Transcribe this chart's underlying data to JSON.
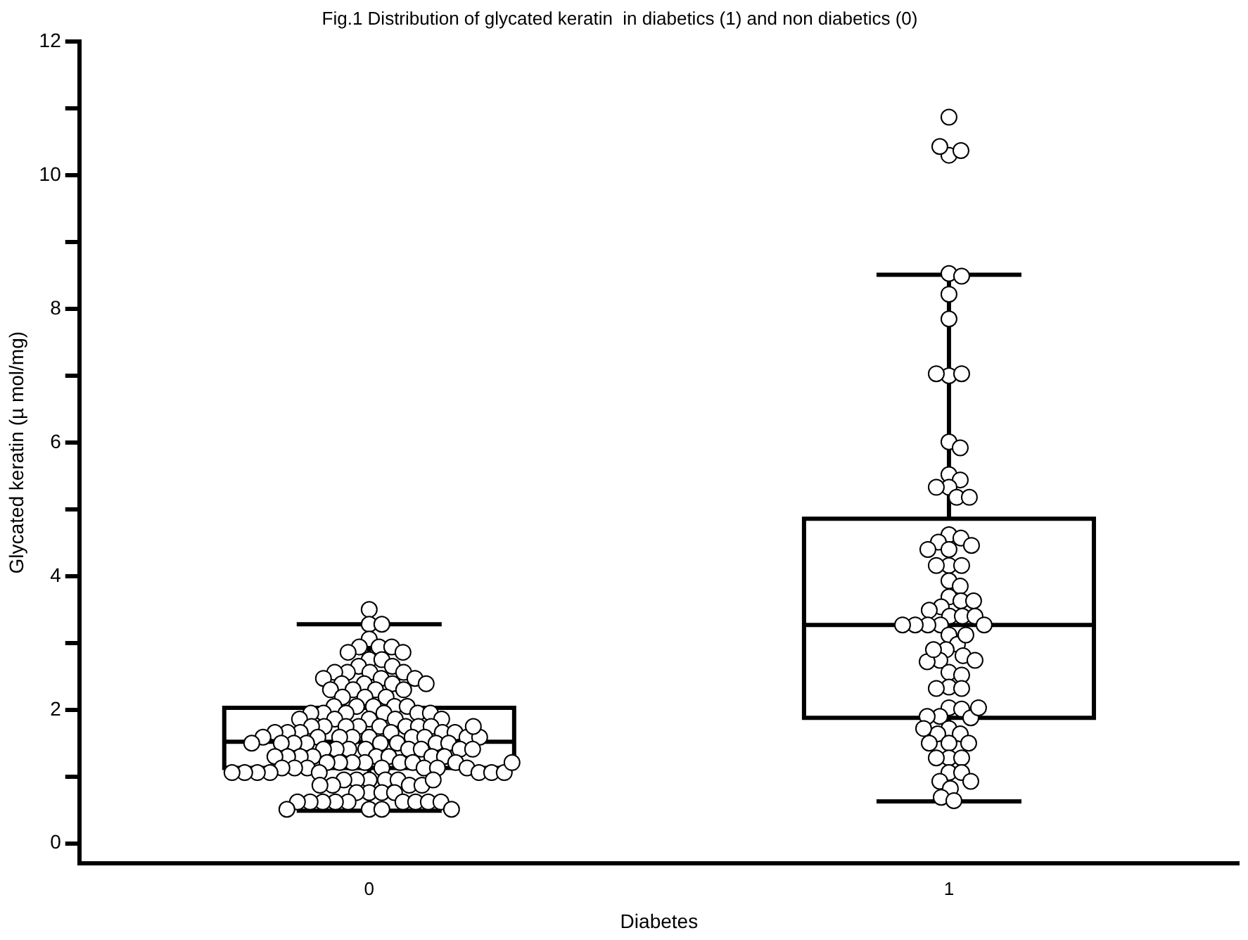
{
  "chart_data": {
    "type": "box",
    "title": "Fig.1 Distribution of glycated keratin  in diabetics (1) and non diabetics (0)",
    "xlabel": "Diabetes",
    "ylabel": "Glycated keratin (µ mol/mg)",
    "categories": [
      "0",
      "1"
    ],
    "color": "#000000",
    "boxes": [
      {
        "low": 0.49,
        "q1": 1.13,
        "median": 1.52,
        "q3": 2.03,
        "high": 3.28
      },
      {
        "low": 0.63,
        "q1": 1.88,
        "median": 3.27,
        "q3": 4.86,
        "high": 8.51
      }
    ],
    "ylim": [
      -0.3,
      12
    ],
    "yticks": [
      0,
      {
        "value": 1,
        "label": null
      },
      2,
      {
        "value": 3,
        "label": null
      },
      4,
      {
        "value": 5,
        "label": null
      },
      6,
      {
        "value": 7,
        "label": null
      },
      8,
      {
        "value": 9,
        "label": null
      },
      10,
      {
        "value": 11,
        "label": null
      },
      12
    ],
    "grid": false,
    "legend": false,
    "marker": "circle",
    "series": [
      {
        "type": "scatter",
        "color": "#000000",
        "x": [
          "0",
          "0",
          "0",
          "0",
          "0",
          "0",
          "0",
          "0",
          "0",
          "0",
          "0",
          "0",
          "0",
          "0",
          "0",
          "0",
          "0",
          "0",
          "0",
          "0",
          "0",
          "0",
          "0",
          "0",
          "0",
          "0",
          "0",
          "0",
          "0",
          "0",
          "0",
          "0",
          "0",
          "0",
          "0",
          "0",
          "0",
          "0",
          "0",
          "0",
          "0",
          "0",
          "0",
          "0",
          "0",
          "0",
          "0",
          "0",
          "0",
          "0",
          "0",
          "0",
          "0",
          "0",
          "0",
          "0",
          "0",
          "0",
          "0",
          "0",
          "0",
          "0",
          "0",
          "0",
          "0",
          "0",
          "0",
          "0",
          "0",
          "0",
          "0",
          "0",
          "0",
          "0",
          "0",
          "0",
          "0",
          "0",
          "0",
          "0",
          "0",
          "0",
          "0",
          "0",
          "0",
          "0",
          "0",
          "0",
          "0",
          "0",
          "0",
          "0",
          "0",
          "0",
          "0",
          "0",
          "0",
          "0",
          "0",
          "0",
          "0",
          "0",
          "0",
          "0",
          "0",
          "0",
          "0",
          "0",
          "0",
          "0",
          "0",
          "0",
          "0",
          "0",
          "0",
          "0",
          "0",
          "0",
          "0",
          "0",
          "0",
          "0",
          "0",
          "0",
          "0",
          "0",
          "0",
          "0",
          "0",
          "0",
          "0",
          "0",
          "0",
          "0",
          "0",
          "0",
          "0",
          "0",
          "0",
          "0",
          "0",
          "0",
          "0",
          "0",
          "0"
        ],
        "values": [
          3.5,
          3.28,
          3.28,
          3.06,
          2.94,
          2.94,
          2.94,
          2.86,
          2.86,
          2.75,
          2.75,
          2.65,
          2.65,
          2.56,
          2.56,
          2.56,
          2.56,
          2.47,
          2.47,
          2.47,
          2.39,
          2.39,
          2.39,
          2.39,
          2.3,
          2.3,
          2.3,
          2.3,
          2.19,
          2.19,
          2.19,
          2.05,
          2.05,
          2.05,
          2.05,
          2.05,
          1.95,
          1.95,
          1.95,
          1.95,
          1.95,
          1.95,
          1.86,
          1.86,
          1.86,
          1.86,
          1.86,
          1.75,
          1.75,
          1.75,
          1.75,
          1.75,
          1.75,
          1.75,
          1.75,
          1.66,
          1.66,
          1.66,
          1.66,
          1.66,
          1.66,
          1.59,
          1.59,
          1.59,
          1.59,
          1.59,
          1.59,
          1.59,
          1.59,
          1.59,
          1.5,
          1.5,
          1.5,
          1.5,
          1.5,
          1.5,
          1.5,
          1.5,
          1.41,
          1.41,
          1.41,
          1.41,
          1.41,
          1.41,
          1.41,
          1.3,
          1.3,
          1.3,
          1.3,
          1.3,
          1.3,
          1.3,
          1.3,
          1.21,
          1.21,
          1.21,
          1.21,
          1.21,
          1.21,
          1.21,
          1.13,
          1.13,
          1.13,
          1.13,
          1.13,
          1.13,
          1.13,
          1.06,
          1.06,
          1.06,
          1.06,
          1.06,
          1.06,
          1.06,
          1.06,
          0.95,
          0.95,
          0.95,
          0.95,
          0.95,
          0.87,
          0.87,
          0.87,
          0.87,
          0.76,
          0.76,
          0.76,
          0.76,
          0.62,
          0.62,
          0.62,
          0.62,
          0.62,
          0.62,
          0.62,
          0.62,
          0.62,
          0.51,
          0.51,
          0.51,
          0.51,
          1.75,
          1.41,
          1.21,
          0.95
        ]
      },
      {
        "type": "scatter",
        "color": "#000000",
        "x": [
          "1",
          "1",
          "1",
          "1",
          "1",
          "1",
          "1",
          "1",
          "1",
          "1",
          "1",
          "1",
          "1",
          "1",
          "1",
          "1",
          "1",
          "1",
          "1",
          "1",
          "1",
          "1",
          "1",
          "1",
          "1",
          "1",
          "1",
          "1",
          "1",
          "1",
          "1",
          "1",
          "1",
          "1",
          "1",
          "1",
          "1",
          "1",
          "1",
          "1",
          "1",
          "1",
          "1",
          "1",
          "1",
          "1",
          "1",
          "1",
          "1",
          "1",
          "1",
          "1",
          "1",
          "1",
          "1",
          "1",
          "1",
          "1",
          "1",
          "1",
          "1",
          "1",
          "1",
          "1",
          "1",
          "1",
          "1",
          "1",
          "1",
          "1",
          "1",
          "1",
          "1",
          "1",
          "1",
          "1",
          "1",
          "1",
          "1",
          "1"
        ],
        "values": [
          10.87,
          10.3,
          10.37,
          10.43,
          8.53,
          8.49,
          8.22,
          7.85,
          7.0,
          7.03,
          7.03,
          6.01,
          5.92,
          5.52,
          5.44,
          5.33,
          5.33,
          5.18,
          5.18,
          4.62,
          4.57,
          4.51,
          4.46,
          4.4,
          4.16,
          4.16,
          4.16,
          3.93,
          3.85,
          3.69,
          3.63,
          3.54,
          3.49,
          3.4,
          3.4,
          3.4,
          3.27,
          3.27,
          3.27,
          3.27,
          3.27,
          3.12,
          2.98,
          2.9,
          2.81,
          2.74,
          2.72,
          2.56,
          2.52,
          2.34,
          2.32,
          2.03,
          2.01,
          1.9,
          1.88,
          1.72,
          1.64,
          1.64,
          1.5,
          1.5,
          1.28,
          1.28,
          1.06,
          1.06,
          0.93,
          0.82,
          0.69,
          0.64,
          3.12,
          2.9,
          2.74,
          1.9,
          1.72,
          1.5,
          1.28,
          0.93,
          2.03,
          4.4,
          3.63,
          2.32
        ]
      }
    ]
  }
}
